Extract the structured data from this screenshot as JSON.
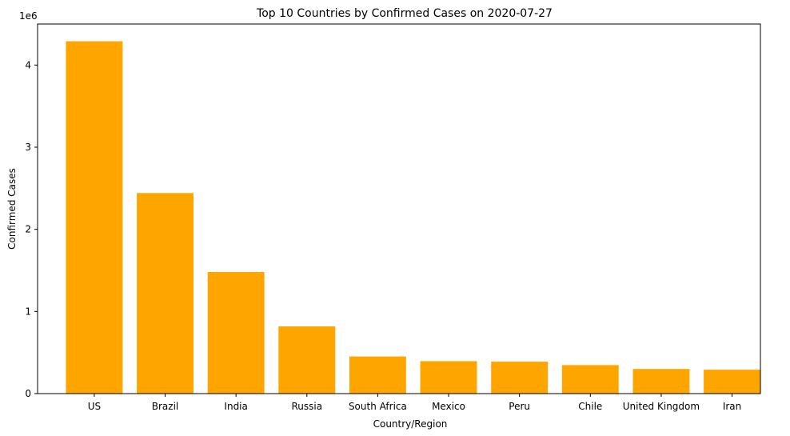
{
  "chart_data": {
    "type": "bar",
    "title": "Top 10 Countries by Confirmed Cases on 2020-07-27",
    "xlabel": "Country/Region",
    "ylabel": "Confirmed Cases",
    "y_offset_label": "1e6",
    "categories": [
      "US",
      "Brazil",
      "India",
      "Russia",
      "South Africa",
      "Mexico",
      "Peru",
      "Chile",
      "United Kingdom",
      "Iran"
    ],
    "values": [
      4290000,
      2442000,
      1480000,
      818000,
      452000,
      395000,
      389000,
      347000,
      300000,
      291000
    ],
    "ylim": [
      0,
      4500000
    ],
    "yticks": [
      0,
      1000000,
      2000000,
      3000000,
      4000000
    ],
    "ytick_labels": [
      "0",
      "1",
      "2",
      "3",
      "4"
    ],
    "bar_color": "#ffa500",
    "grid": false,
    "legend": "none"
  }
}
